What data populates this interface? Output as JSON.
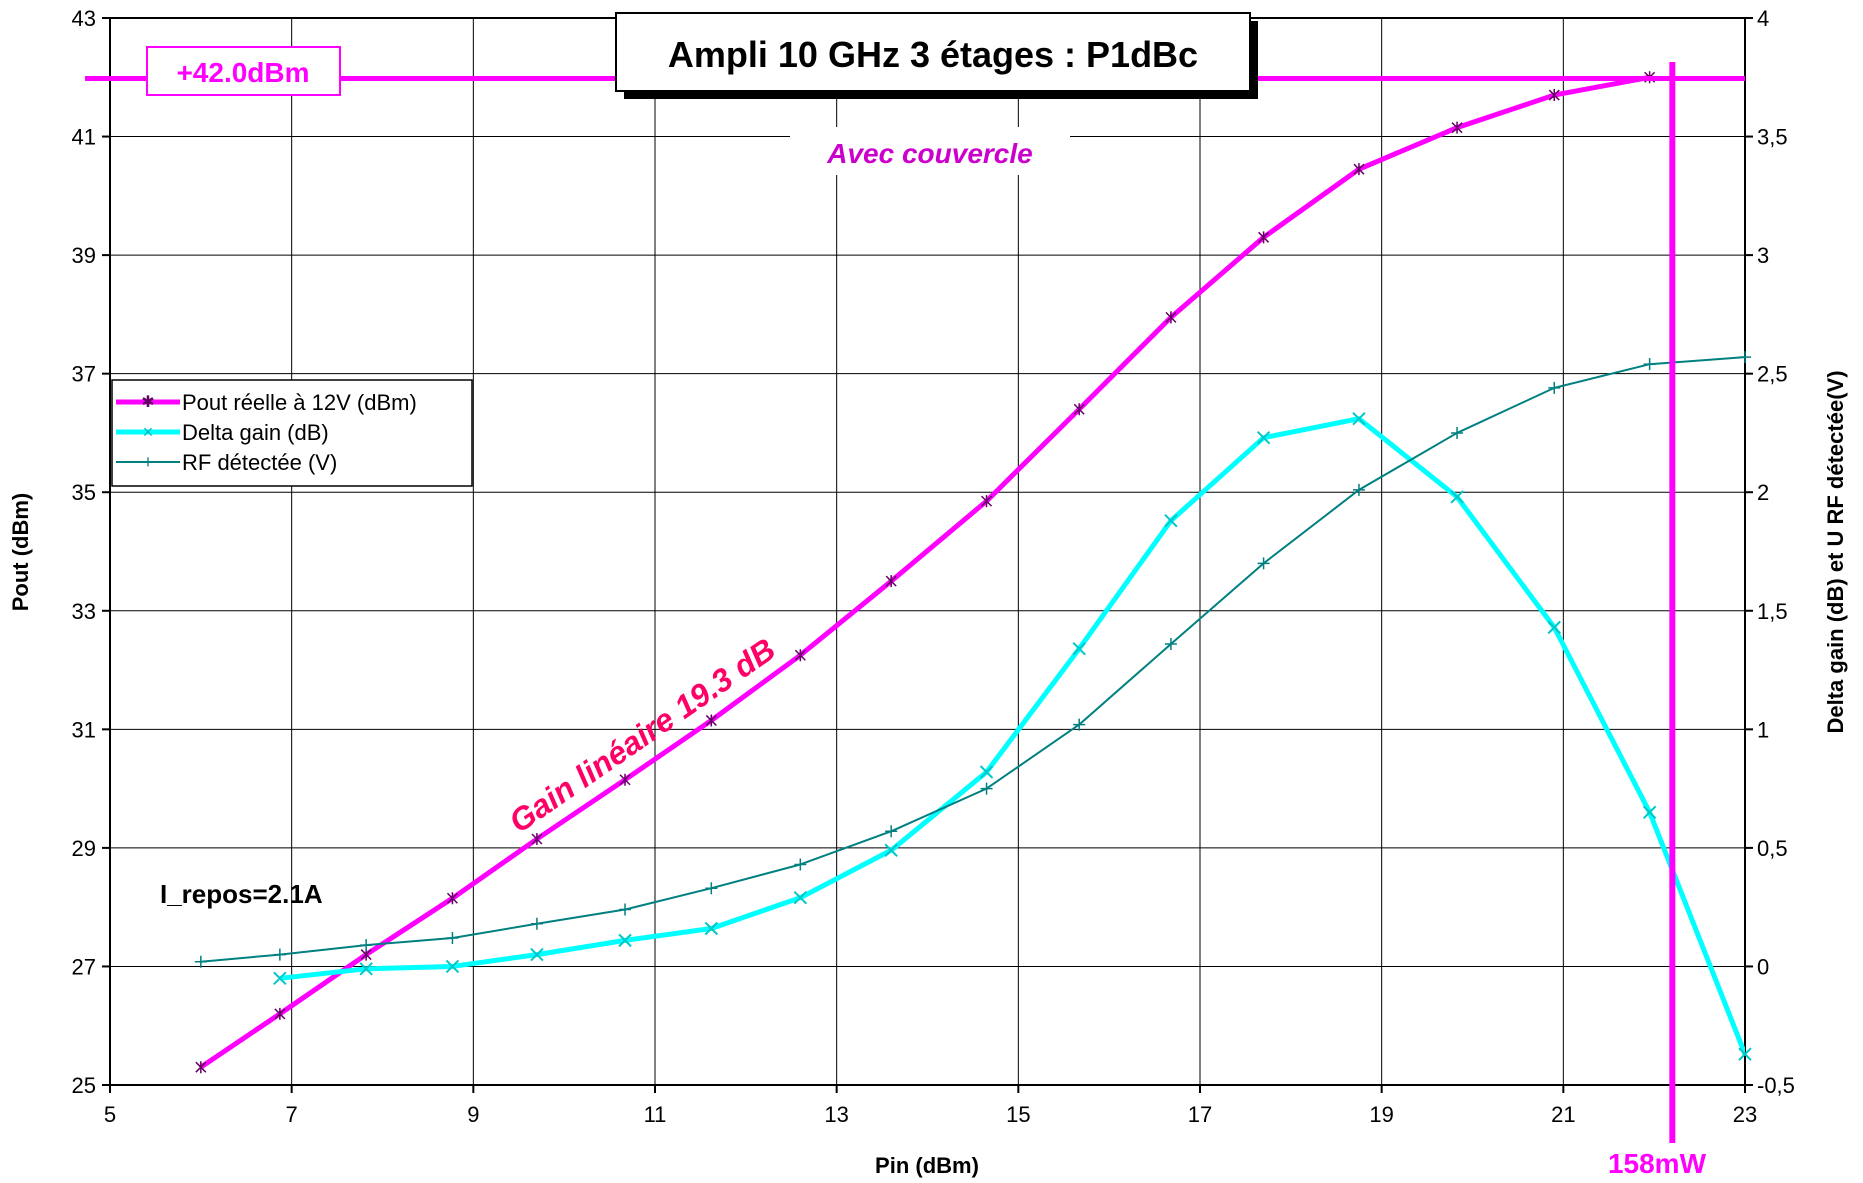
{
  "chart_data": {
    "type": "line",
    "title": "Ampli 10 GHz 3 étages : P1dBc",
    "xlabel": "Pin (dBm)",
    "ylabel": "Pout (dBm)",
    "y2label": "Delta gain (dB) et U RF détectée(V)",
    "xlim": [
      5,
      23
    ],
    "ylim": [
      25,
      43
    ],
    "y2lim": [
      -0.5,
      4
    ],
    "x_ticks": [
      "5",
      "7",
      "9",
      "11",
      "13",
      "15",
      "17",
      "19",
      "21",
      "23"
    ],
    "y_ticks": [
      "25",
      "27",
      "29",
      "31",
      "33",
      "35",
      "37",
      "39",
      "41",
      "43"
    ],
    "y2_ticks": [
      "-0,5",
      "0",
      "0,5",
      "1",
      "1,5",
      "2",
      "2,5",
      "3",
      "3,5",
      "4"
    ],
    "grid": true,
    "legend_position": "left",
    "series": [
      {
        "name": "Pout réelle à 12V (dBm)",
        "axis": "left",
        "color": "#ff00ff",
        "marker": "star",
        "x": [
          6,
          6.87,
          7.82,
          8.77,
          9.7,
          10.67,
          11.62,
          12.6,
          13.6,
          14.65,
          15.67,
          16.68,
          17.7,
          18.75,
          19.83,
          20.9,
          21.95
        ],
        "y": [
          25.3,
          26.2,
          27.2,
          28.15,
          29.15,
          30.15,
          31.15,
          32.25,
          33.5,
          34.85,
          36.4,
          37.95,
          39.3,
          40.45,
          41.15,
          41.7,
          42.0
        ]
      },
      {
        "name": "Delta gain (dB)",
        "axis": "right",
        "color": "#00ffff",
        "marker": "x",
        "x": [
          6.87,
          7.82,
          8.77,
          9.7,
          10.67,
          11.62,
          12.6,
          13.6,
          14.65,
          15.67,
          16.68,
          17.7,
          18.75,
          19.83,
          20.9,
          21.95,
          23
        ],
        "y": [
          -0.05,
          -0.01,
          0.0,
          0.05,
          0.11,
          0.16,
          0.29,
          0.49,
          0.82,
          1.34,
          1.88,
          2.23,
          2.31,
          1.98,
          1.43,
          0.65,
          -0.37
        ]
      },
      {
        "name": "RF détectée (V)",
        "axis": "right",
        "color": "#008080",
        "marker": "plus",
        "x": [
          6,
          6.87,
          7.82,
          8.77,
          9.7,
          10.67,
          11.62,
          12.6,
          13.6,
          14.65,
          15.67,
          16.68,
          17.7,
          18.75,
          19.83,
          20.9,
          21.95,
          23
        ],
        "y": [
          0.02,
          0.05,
          0.09,
          0.12,
          0.18,
          0.24,
          0.33,
          0.43,
          0.57,
          0.75,
          1.02,
          1.36,
          1.7,
          2.01,
          2.25,
          2.44,
          2.54,
          2.57
        ]
      }
    ],
    "reference_lines": {
      "horizontal_y": 41.98,
      "vertical_x": 22.2,
      "color": "#ff00ff"
    },
    "annotations": {
      "p1db_label": "+42.0dBm",
      "power_label": "158mW",
      "couvercle": "Avec couvercle",
      "gain_text": "Gain linéaire 19.3 dB",
      "bias_text": "I_repos=2.1A"
    }
  }
}
